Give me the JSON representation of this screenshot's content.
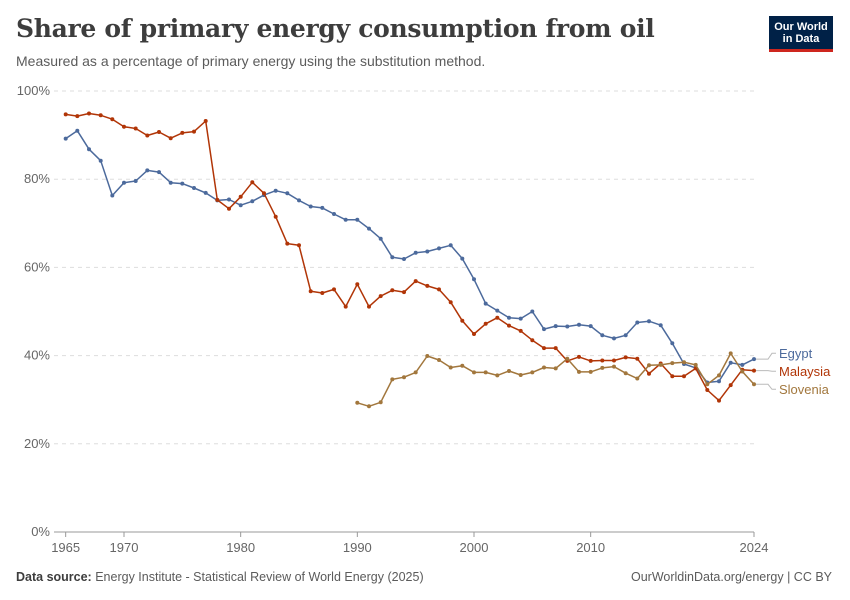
{
  "header": {
    "title": "Share of primary energy consumption from oil",
    "subtitle": "Measured as a percentage of primary energy using the substitution method.",
    "logo_line1": "Our World",
    "logo_line2": "in Data"
  },
  "footer": {
    "source_label": "Data source:",
    "source_text": "Energy Institute - Statistical Review of World Energy (2025)",
    "credit": "OurWorldinData.org/energy | CC BY"
  },
  "colors": {
    "Egypt": "#4c6a9c",
    "Malaysia": "#b13507",
    "Slovenia": "#a2773d",
    "grid": "#dddddd",
    "axis_text": "#666666"
  },
  "chart_data": {
    "type": "line",
    "title": "Share of primary energy consumption from oil",
    "subtitle": "Measured as a percentage of primary energy using the substitution method.",
    "xlim": [
      1964,
      2024
    ],
    "ylim": [
      0,
      100
    ],
    "x_ticks": [
      "1965",
      "1970",
      "1980",
      "1990",
      "2000",
      "2010",
      "2024"
    ],
    "y_ticks": [
      "0%",
      "20%",
      "40%",
      "60%",
      "80%",
      "100%"
    ],
    "grid": "horizontal dashed",
    "legend": "right end labels",
    "series": [
      {
        "name": "Egypt",
        "start_year": 1965,
        "values": [
          89.2,
          91.0,
          86.8,
          84.2,
          76.3,
          79.2,
          79.6,
          82.0,
          81.6,
          79.2,
          79.0,
          78.0,
          76.9,
          75.2,
          75.4,
          74.1,
          75.0,
          76.4,
          77.4,
          76.8,
          75.2,
          73.8,
          73.5,
          72.1,
          70.8,
          70.8,
          68.8,
          66.5,
          62.3,
          61.9,
          63.3,
          63.6,
          64.3,
          65.0,
          62.0,
          57.3,
          51.8,
          50.2,
          48.6,
          48.4,
          50.0,
          46.0,
          46.7,
          46.6,
          47.0,
          46.7,
          44.6,
          43.9,
          44.6,
          47.5,
          47.8,
          46.9,
          42.8,
          38.1,
          37.2,
          33.9,
          34.2,
          38.4,
          37.9,
          39.2
        ]
      },
      {
        "name": "Malaysia",
        "start_year": 1965,
        "values": [
          94.7,
          94.3,
          94.9,
          94.5,
          93.6,
          91.9,
          91.5,
          89.9,
          90.7,
          89.3,
          90.5,
          90.8,
          93.2,
          75.3,
          73.3,
          76.0,
          79.3,
          76.8,
          71.5,
          65.4,
          65.0,
          54.6,
          54.2,
          55.0,
          51.1,
          56.2,
          51.1,
          53.5,
          54.8,
          54.4,
          56.9,
          55.8,
          55.0,
          52.1,
          47.9,
          44.9,
          47.2,
          48.6,
          46.8,
          45.6,
          43.5,
          41.7,
          41.7,
          38.8,
          39.7,
          38.8,
          38.9,
          38.9,
          39.6,
          39.3,
          35.9,
          38.2,
          35.3,
          35.3,
          37.1,
          32.2,
          29.8,
          33.3,
          36.8,
          36.6
        ]
      },
      {
        "name": "Slovenia",
        "start_year": 1990,
        "values": [
          29.3,
          28.5,
          29.4,
          34.6,
          35.1,
          36.2,
          39.9,
          39.0,
          37.3,
          37.7,
          36.2,
          36.2,
          35.5,
          36.5,
          35.6,
          36.2,
          37.3,
          37.1,
          39.3,
          36.3,
          36.3,
          37.2,
          37.5,
          36.0,
          34.8,
          37.8,
          37.9,
          38.3,
          38.5,
          37.9,
          33.5,
          35.5,
          40.5,
          36.4,
          33.5
        ]
      }
    ]
  }
}
